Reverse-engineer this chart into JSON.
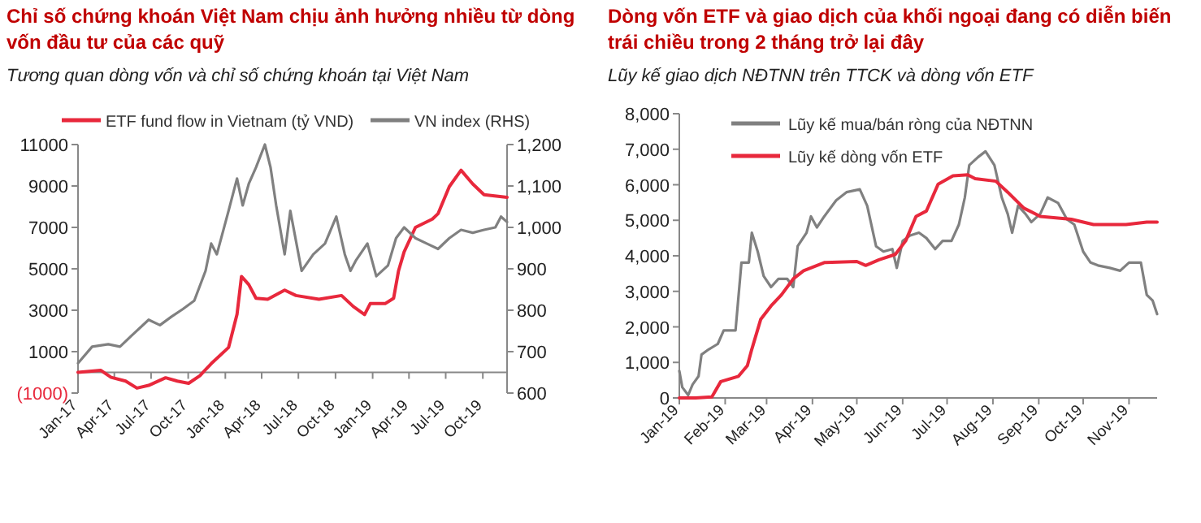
{
  "chart_data": [
    {
      "type": "line",
      "title": "Chỉ số chứng khoán Việt Nam chịu ảnh hưởng nhiều từ dòng vốn đầu tư của các quỹ",
      "subtitle": "Tương quan dòng vốn và chỉ số chứng khoán tại Việt Nam",
      "legend": "top",
      "xlim": [
        "2017-01-01",
        "2019-11-30"
      ],
      "xticks": [
        {
          "value": "2017-01-01",
          "label": "Jan-17"
        },
        {
          "value": "2017-04-01",
          "label": "Apr-17"
        },
        {
          "value": "2017-07-01",
          "label": "Jul-17"
        },
        {
          "value": "2017-10-01",
          "label": "Oct-17"
        },
        {
          "value": "2018-01-01",
          "label": "Jan-18"
        },
        {
          "value": "2018-04-01",
          "label": "Apr-18"
        },
        {
          "value": "2018-07-01",
          "label": "Jul-18"
        },
        {
          "value": "2018-10-01",
          "label": "Oct-18"
        },
        {
          "value": "2019-01-01",
          "label": "Jan-19"
        },
        {
          "value": "2019-04-01",
          "label": "Apr-19"
        },
        {
          "value": "2019-07-01",
          "label": "Jul-19"
        },
        {
          "value": "2019-10-01",
          "label": "Oct-19"
        }
      ],
      "ylim": [
        -1000,
        11000
      ],
      "yticks": [
        {
          "value": -1000,
          "label": "(1000)"
        },
        1000,
        3000,
        5000,
        7000,
        9000,
        11000
      ],
      "y2lim": [
        600,
        1200
      ],
      "y2ticks": [
        600,
        700,
        800,
        900,
        {
          "value": 1000,
          "label": "1,000"
        },
        {
          "value": 1100,
          "label": "1,100"
        },
        {
          "value": 1200,
          "label": "1,200"
        }
      ],
      "series": [
        {
          "name": "ETF  fund flow in Vietnam (tỷ VND)",
          "color": "#e8283c",
          "x": [
            "2017-01-01",
            "2017-02-26",
            "2017-03-24",
            "2017-04-29",
            "2017-05-27",
            "2017-06-25",
            "2017-08-06",
            "2017-09-04",
            "2017-10-02",
            "2017-10-30",
            "2017-11-27",
            "2018-01-09",
            "2018-01-30",
            "2018-02-10",
            "2018-02-28",
            "2018-03-18",
            "2018-04-16",
            "2018-05-28",
            "2018-06-25",
            "2018-08-21",
            "2018-10-16",
            "2018-11-14",
            "2018-12-12",
            "2018-12-26",
            "2019-02-01",
            "2019-02-22",
            "2019-03-06",
            "2019-03-20",
            "2019-04-17",
            "2019-05-29",
            "2019-06-12",
            "2019-07-10",
            "2019-08-08",
            "2019-09-06",
            "2019-10-04",
            "2019-11-30"
          ],
          "values": [
            0,
            100,
            -240,
            -420,
            -760,
            -630,
            -260,
            -420,
            -530,
            -160,
            420,
            1200,
            2800,
            4630,
            4240,
            3580,
            3530,
            3970,
            3710,
            3530,
            3710,
            3180,
            2790,
            3320,
            3320,
            3580,
            4890,
            5820,
            7000,
            7400,
            7660,
            8970,
            9760,
            9100,
            8580,
            8450
          ]
        },
        {
          "name": "VN index (RHS)",
          "color": "#808080",
          "axis": "y2",
          "x": [
            "2017-01-01",
            "2017-02-05",
            "2017-03-17",
            "2017-04-15",
            "2017-05-13",
            "2017-06-25",
            "2017-07-23",
            "2017-08-20",
            "2017-09-18",
            "2017-10-16",
            "2017-11-13",
            "2017-11-27",
            "2017-12-11",
            "2018-01-09",
            "2018-01-30",
            "2018-02-13",
            "2018-02-28",
            "2018-03-18",
            "2018-04-09",
            "2018-04-23",
            "2018-05-07",
            "2018-05-28",
            "2018-06-11",
            "2018-07-09",
            "2018-08-07",
            "2018-09-05",
            "2018-10-03",
            "2018-10-24",
            "2018-11-07",
            "2018-11-21",
            "2018-12-19",
            "2019-01-10",
            "2019-02-08",
            "2019-02-28",
            "2019-03-20",
            "2019-04-17",
            "2019-05-15",
            "2019-06-12",
            "2019-07-10",
            "2019-08-08",
            "2019-09-06",
            "2019-10-04",
            "2019-11-01",
            "2019-11-15",
            "2019-11-30"
          ],
          "values": [
            672,
            712,
            718,
            712,
            738,
            777,
            764,
            784,
            803,
            823,
            895,
            961,
            935,
            1040,
            1118,
            1053,
            1105,
            1145,
            1200,
            1145,
            1053,
            935,
            1040,
            895,
            935,
            961,
            1026,
            935,
            895,
            921,
            961,
            882,
            908,
            974,
            1000,
            974,
            961,
            948,
            974,
            994,
            987,
            994,
            1000,
            1026,
            1013
          ]
        }
      ]
    },
    {
      "type": "line",
      "title": "Dòng vốn ETF và giao dịch của khối ngoại đang có diễn biến trái chiều trong 2 tháng trở lại đây",
      "subtitle": "Lũy kế giao dịch NĐTNN trên TTCK và dòng vốn ETF",
      "legend": "top left",
      "xlim": [
        "2019-01-01",
        "2019-11-20"
      ],
      "xticks": [
        {
          "value": "2019-01-01",
          "label": "Jan-19"
        },
        {
          "value": "2019-02-01",
          "label": "Feb-19"
        },
        {
          "value": "2019-03-01",
          "label": "Mar-19"
        },
        {
          "value": "2019-04-01",
          "label": "Apr-19"
        },
        {
          "value": "2019-05-01",
          "label": "May-19"
        },
        {
          "value": "2019-06-01",
          "label": "Jun-19"
        },
        {
          "value": "2019-07-01",
          "label": "Jul-19"
        },
        {
          "value": "2019-08-01",
          "label": "Aug-19"
        },
        {
          "value": "2019-09-01",
          "label": "Sep-19"
        },
        {
          "value": "2019-10-01",
          "label": "Oct-19"
        },
        {
          "value": "2019-11-01",
          "label": "Nov-19"
        }
      ],
      "ylim": [
        0,
        8000
      ],
      "yticks": [
        0,
        {
          "value": 1000,
          "label": "1,000"
        },
        {
          "value": 2000,
          "label": "2,000"
        },
        {
          "value": 3000,
          "label": "3,000"
        },
        {
          "value": 4000,
          "label": "4,000"
        },
        {
          "value": 5000,
          "label": "5,000"
        },
        {
          "value": 6000,
          "label": "6,000"
        },
        {
          "value": 7000,
          "label": "7,000"
        },
        {
          "value": 8000,
          "label": "8,000"
        }
      ],
      "series": [
        {
          "name": "Lũy kế mua/bán ròng của NĐTNN",
          "color": "#808080",
          "x": [
            "2019-01-01",
            "2019-01-03",
            "2019-01-07",
            "2019-01-10",
            "2019-01-14",
            "2019-01-16",
            "2019-01-21",
            "2019-01-27",
            "2019-01-31",
            "2019-02-08",
            "2019-02-12",
            "2019-02-17",
            "2019-02-19",
            "2019-02-23",
            "2019-02-27",
            "2019-03-04",
            "2019-03-09",
            "2019-03-15",
            "2019-03-19",
            "2019-03-22",
            "2019-03-28",
            "2019-03-31",
            "2019-04-04",
            "2019-04-09",
            "2019-04-17",
            "2019-04-24",
            "2019-05-03",
            "2019-05-08",
            "2019-05-14",
            "2019-05-19",
            "2019-05-25",
            "2019-05-28",
            "2019-06-01",
            "2019-06-06",
            "2019-06-12",
            "2019-06-17",
            "2019-06-23",
            "2019-06-28",
            "2019-07-04",
            "2019-07-09",
            "2019-07-13",
            "2019-07-16",
            "2019-07-22",
            "2019-07-27",
            "2019-08-02",
            "2019-08-07",
            "2019-08-11",
            "2019-08-14",
            "2019-08-18",
            "2019-08-23",
            "2019-08-27",
            "2019-09-02",
            "2019-09-07",
            "2019-09-14",
            "2019-09-20",
            "2019-09-25",
            "2019-10-01",
            "2019-10-06",
            "2019-10-11",
            "2019-10-19",
            "2019-10-26",
            "2019-11-01",
            "2019-11-09",
            "2019-11-13",
            "2019-11-17",
            "2019-11-20"
          ],
          "values": [
            760,
            300,
            80,
            380,
            610,
            1220,
            1370,
            1520,
            1900,
            1900,
            3810,
            3810,
            4650,
            4120,
            3430,
            3120,
            3350,
            3350,
            3120,
            4270,
            4650,
            5110,
            4800,
            5110,
            5560,
            5790,
            5870,
            5410,
            4270,
            4120,
            4190,
            3660,
            4420,
            4570,
            4650,
            4500,
            4190,
            4420,
            4420,
            4880,
            5640,
            6550,
            6780,
            6940,
            6550,
            5640,
            5180,
            4650,
            5410,
            5180,
            4950,
            5180,
            5640,
            5490,
            5030,
            4880,
            4120,
            3810,
            3730,
            3660,
            3580,
            3810,
            3810,
            2900,
            2740,
            2360
          ]
        },
        {
          "name": "Lũy kế dòng vốn ETF",
          "color": "#e8283c",
          "x": [
            "2019-01-01",
            "2019-01-12",
            "2019-01-23",
            "2019-01-29",
            "2019-02-10",
            "2019-02-16",
            "2019-02-19",
            "2019-02-25",
            "2019-03-04",
            "2019-03-11",
            "2019-03-19",
            "2019-03-26",
            "2019-04-09",
            "2019-05-01",
            "2019-05-07",
            "2019-05-16",
            "2019-05-27",
            "2019-06-03",
            "2019-06-10",
            "2019-06-17",
            "2019-06-25",
            "2019-07-05",
            "2019-07-15",
            "2019-07-20",
            "2019-08-03",
            "2019-08-11",
            "2019-08-22",
            "2019-09-02",
            "2019-09-23",
            "2019-10-08",
            "2019-10-30",
            "2019-11-13",
            "2019-11-20"
          ],
          "values": [
            0,
            0,
            30,
            460,
            610,
            910,
            1370,
            2210,
            2590,
            2900,
            3350,
            3580,
            3810,
            3840,
            3730,
            3890,
            4040,
            4420,
            5110,
            5260,
            6020,
            6250,
            6280,
            6170,
            6100,
            5790,
            5340,
            5110,
            5030,
            4880,
            4880,
            4950,
            4950
          ]
        }
      ]
    }
  ]
}
